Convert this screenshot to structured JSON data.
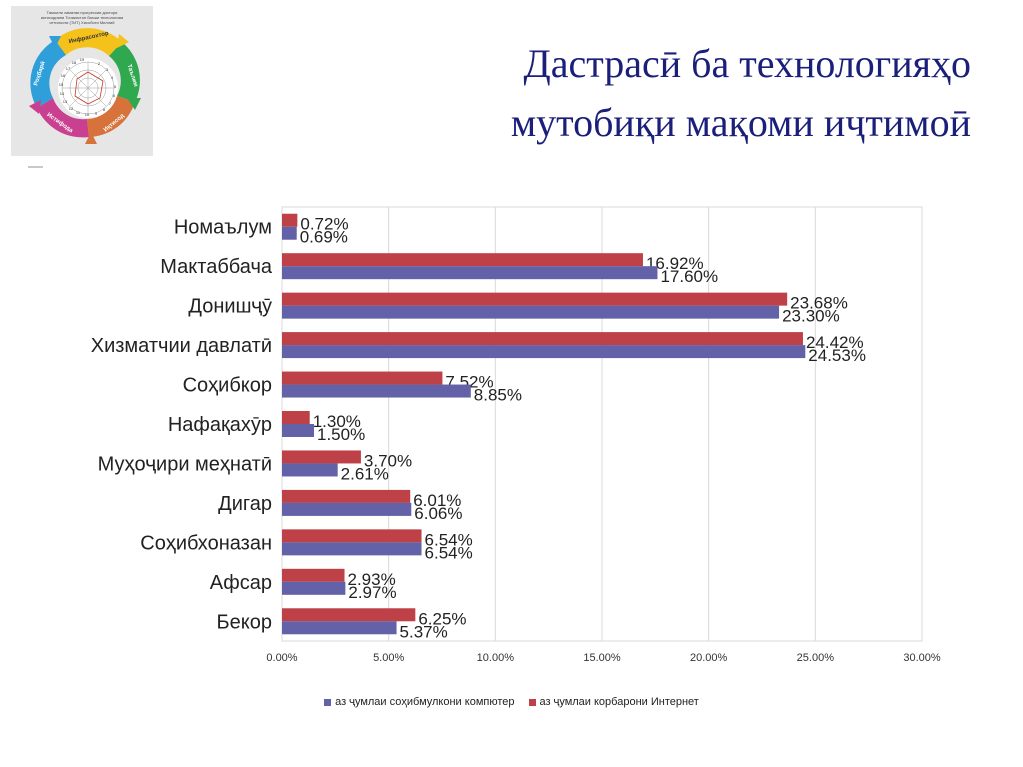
{
  "title": {
    "line1": "Дастрасӣ ба технологияҳо",
    "line2": "мутобиқи мақоми иҷтимоӣ"
  },
  "logo": {
    "caption_lines": [
      "Тамоили хаматаи прогрессии доктори",
      "иктисодияни Точикистон бахши технологияи",
      "иттилооти (ТИТ) Хисоботи Миллий"
    ],
    "segments": [
      "Инфрасохтор",
      "Таълим",
      "Иқтисод",
      "Истифода",
      "Роҳбарӣ"
    ],
    "wheel_numbers": [
      "2",
      "3",
      "4",
      "5",
      "6",
      "7",
      "8",
      "9",
      "10",
      "11",
      "12",
      "13",
      "14",
      "15",
      "16",
      "17",
      "18",
      "19"
    ]
  },
  "chart_data": {
    "type": "bar",
    "orientation": "horizontal",
    "categories": [
      "Номаълум",
      "Мактаббача",
      "Донишҷӯ",
      "Хизматчии давлатӣ",
      "Соҳибкор",
      "Нафақахӯр",
      "Муҳоҷири меҳнатӣ",
      "Дигар",
      "Соҳибхоназан",
      "Афсар",
      "Бекор"
    ],
    "series": [
      {
        "name": "аз ҷумлаи корбарони Интернет",
        "color": "#bf4148",
        "values": [
          0.72,
          16.92,
          23.68,
          24.42,
          7.52,
          1.3,
          3.7,
          6.01,
          6.54,
          2.93,
          6.25
        ],
        "labels": [
          "0.72%",
          "16.92%",
          "23.68%",
          "24.42%",
          "7.52%",
          "1.30%",
          "3.70%",
          "6.01%",
          "6.54%",
          "2.93%",
          "6.25%"
        ]
      },
      {
        "name": "аз ҷумлаи соҳибмулкони компютер",
        "color": "#6361a8",
        "values": [
          0.69,
          17.6,
          23.3,
          24.53,
          8.85,
          1.5,
          2.61,
          6.06,
          6.54,
          2.97,
          5.37
        ],
        "labels": [
          "0.69%",
          "17.60%",
          "23.30%",
          "24.53%",
          "8.85%",
          "1.50%",
          "2.61%",
          "6.06%",
          "6.54%",
          "2.97%",
          "5.37%"
        ]
      }
    ],
    "xlim": [
      0,
      30
    ],
    "x_ticks": [
      0,
      5,
      10,
      15,
      20,
      25,
      30
    ],
    "x_tick_labels": [
      "0.00%",
      "5.00%",
      "10.00%",
      "15.00%",
      "20.00%",
      "25.00%",
      "30.00%"
    ],
    "grid": true,
    "legend_position": "bottom",
    "legend_order": [
      1,
      0
    ]
  }
}
